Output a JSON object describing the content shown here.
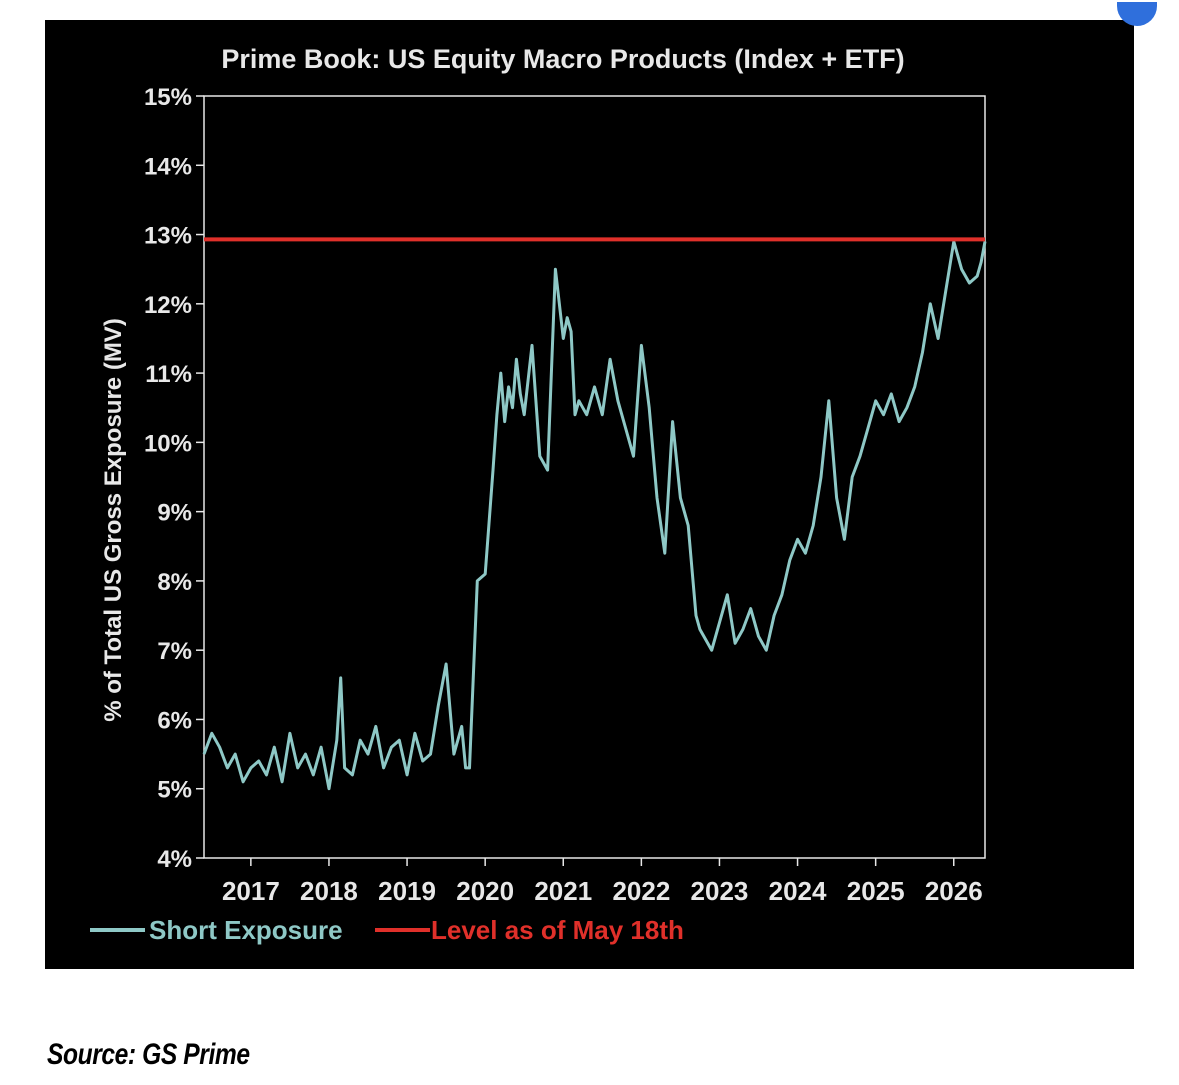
{
  "chart_data": {
    "type": "line",
    "title": "Prime Book: US Equity Macro Products (Index + ETF)",
    "xlabel": "",
    "ylabel": "% of Total US Gross Exposure (MV)",
    "xlim": [
      2016.4,
      2026.4
    ],
    "ylim": [
      4,
      15
    ],
    "yticks": [
      "4%",
      "5%",
      "6%",
      "7%",
      "8%",
      "9%",
      "10%",
      "11%",
      "12%",
      "13%",
      "14%",
      "15%"
    ],
    "xticks": [
      "2017",
      "2018",
      "2019",
      "2020",
      "2021",
      "2022",
      "2023",
      "2024",
      "2025",
      "2026"
    ],
    "grid": false,
    "legend_position": "bottom-left",
    "series": [
      {
        "name": "Short Exposure",
        "color": "#8ec8c6",
        "x": [
          2016.4,
          2016.5,
          2016.6,
          2016.7,
          2016.8,
          2016.9,
          2017.0,
          2017.1,
          2017.2,
          2017.3,
          2017.4,
          2017.5,
          2017.6,
          2017.7,
          2017.8,
          2017.9,
          2018.0,
          2018.1,
          2018.15,
          2018.2,
          2018.3,
          2018.4,
          2018.5,
          2018.6,
          2018.7,
          2018.8,
          2018.9,
          2019.0,
          2019.1,
          2019.2,
          2019.3,
          2019.4,
          2019.5,
          2019.6,
          2019.7,
          2019.75,
          2019.8,
          2019.9,
          2020.0,
          2020.1,
          2020.15,
          2020.2,
          2020.25,
          2020.3,
          2020.35,
          2020.4,
          2020.45,
          2020.5,
          2020.6,
          2020.7,
          2020.8,
          2020.9,
          2021.0,
          2021.05,
          2021.1,
          2021.15,
          2021.2,
          2021.3,
          2021.4,
          2021.5,
          2021.6,
          2021.7,
          2021.8,
          2021.9,
          2022.0,
          2022.1,
          2022.2,
          2022.3,
          2022.4,
          2022.5,
          2022.6,
          2022.7,
          2022.75,
          2022.8,
          2022.9,
          2023.0,
          2023.1,
          2023.2,
          2023.3,
          2023.4,
          2023.5,
          2023.6,
          2023.7,
          2023.8,
          2023.9,
          2024.0,
          2024.1,
          2024.2,
          2024.3,
          2024.4,
          2024.5,
          2024.6,
          2024.7,
          2024.8,
          2024.9,
          2025.0,
          2025.1,
          2025.2,
          2025.3,
          2025.4,
          2025.5,
          2025.6,
          2025.7,
          2025.8,
          2025.9,
          2026.0,
          2026.1,
          2026.2,
          2026.3,
          2026.35,
          2026.4
        ],
        "values": [
          5.5,
          5.8,
          5.6,
          5.3,
          5.5,
          5.1,
          5.3,
          5.4,
          5.2,
          5.6,
          5.1,
          5.8,
          5.3,
          5.5,
          5.2,
          5.6,
          5.0,
          5.7,
          6.6,
          5.3,
          5.2,
          5.7,
          5.5,
          5.9,
          5.3,
          5.6,
          5.7,
          5.2,
          5.8,
          5.4,
          5.5,
          6.2,
          6.8,
          5.5,
          5.9,
          5.3,
          5.3,
          8.0,
          8.1,
          9.6,
          10.4,
          11.0,
          10.3,
          10.8,
          10.5,
          11.2,
          10.7,
          10.4,
          11.4,
          9.8,
          9.6,
          12.5,
          11.5,
          11.8,
          11.6,
          10.4,
          10.6,
          10.4,
          10.8,
          10.4,
          11.2,
          10.6,
          10.2,
          9.8,
          11.4,
          10.5,
          9.2,
          8.4,
          10.3,
          9.2,
          8.8,
          7.5,
          7.3,
          7.2,
          7.0,
          7.4,
          7.8,
          7.1,
          7.3,
          7.6,
          7.2,
          7.0,
          7.5,
          7.8,
          8.3,
          8.6,
          8.4,
          8.8,
          9.5,
          10.6,
          9.2,
          8.6,
          9.5,
          9.8,
          10.2,
          10.6,
          10.4,
          10.7,
          10.3,
          10.5,
          10.8,
          11.3,
          12.0,
          11.5,
          12.2,
          12.9,
          12.5,
          12.3,
          12.4,
          12.6,
          12.9
        ]
      },
      {
        "name": "Level as of May 18th",
        "color": "#e0302a",
        "x": [
          2016.4,
          2026.4
        ],
        "values": [
          12.93,
          12.93
        ]
      }
    ]
  },
  "source": "Source: GS Prime",
  "colors": {
    "background": "#000000",
    "axis": "#e8e8e8",
    "short": "#8ec8c6",
    "level": "#e0302a"
  }
}
